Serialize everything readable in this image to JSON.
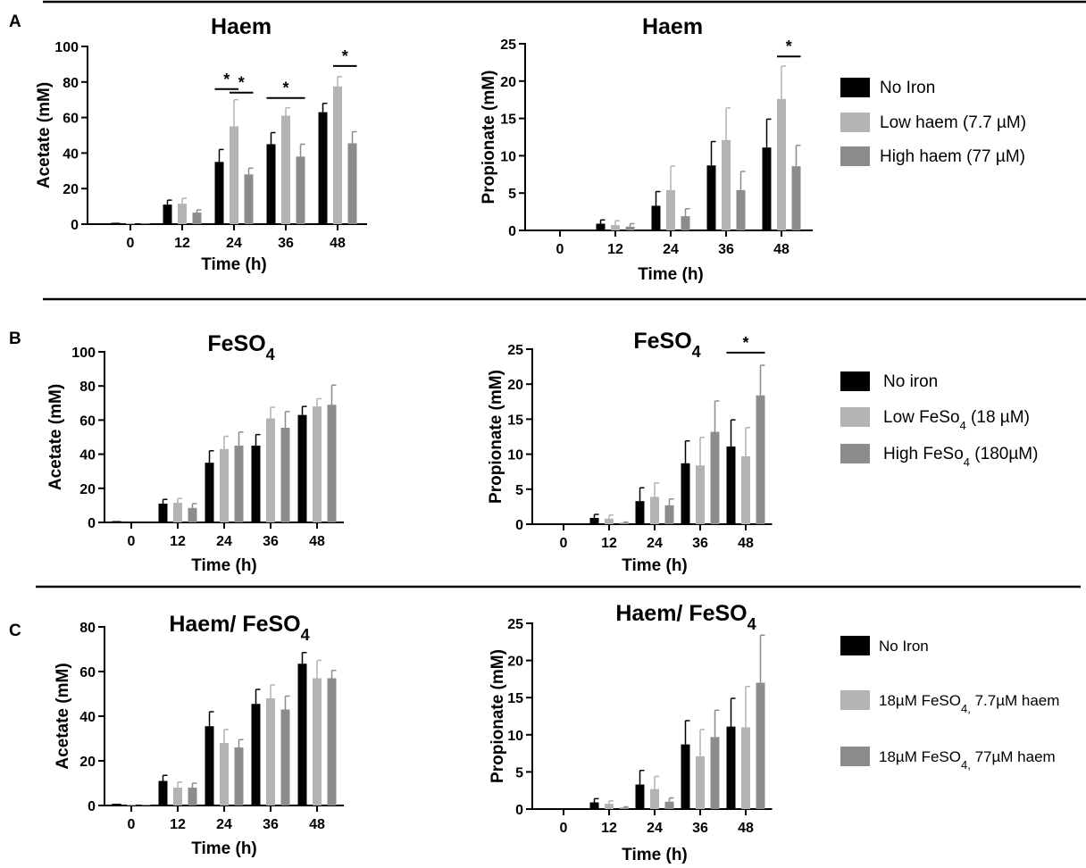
{
  "colors": {
    "no_iron": "#000000",
    "low": "#b3b3b3",
    "high": "#8c8c8c",
    "rule": "#000000"
  },
  "panels": [
    {
      "letter": "A",
      "legend": [
        {
          "parts": [
            {
              "t": "No Iron"
            }
          ]
        },
        {
          "parts": [
            {
              "t": "Low haem (7.7 µM)"
            }
          ]
        },
        {
          "parts": [
            {
              "t": "High haem (77 µM)"
            }
          ]
        }
      ]
    },
    {
      "letter": "B",
      "legend": [
        {
          "parts": [
            {
              "t": "No iron"
            }
          ]
        },
        {
          "parts": [
            {
              "t": "Low FeSo"
            },
            {
              "t": "4",
              "sub": true
            },
            {
              "t": " (18 µM)"
            }
          ]
        },
        {
          "parts": [
            {
              "t": "High FeSo"
            },
            {
              "t": "4",
              "sub": true
            },
            {
              "t": " (180µM)"
            }
          ]
        }
      ]
    },
    {
      "letter": "C",
      "legend": [
        {
          "parts": [
            {
              "t": "No Iron"
            }
          ]
        },
        {
          "parts": [
            {
              "t": "18µM FeSO"
            },
            {
              "t": "4,",
              "sub": true
            },
            {
              "t": " 7.7µM haem"
            }
          ]
        },
        {
          "parts": [
            {
              "t": "18µM FeSO"
            },
            {
              "t": "4,",
              "sub": true
            },
            {
              "t": " 77µM haem"
            }
          ]
        }
      ]
    }
  ],
  "chart_data": [
    {
      "id": "A-acetate",
      "type": "bar",
      "title": "Haem",
      "xlabel": "Time (h)",
      "ylabel": "Acetate (mM)",
      "categories": [
        "0",
        "12",
        "24",
        "36",
        "48"
      ],
      "ylim": [
        0,
        100
      ],
      "yticks": [
        0,
        20,
        40,
        60,
        80,
        100
      ],
      "series": [
        {
          "name": "No Iron",
          "values": [
            0.8,
            11,
            35,
            45,
            63
          ],
          "errors": [
            0,
            2.5,
            7,
            6.5,
            5
          ]
        },
        {
          "name": "Low haem (7.7 µM)",
          "values": [
            0.5,
            11.5,
            55,
            61,
            77.5
          ],
          "errors": [
            0,
            3,
            15,
            4.5,
            5.5
          ]
        },
        {
          "name": "High haem (77 µM)",
          "values": [
            0.4,
            6.5,
            28,
            38,
            45.5
          ],
          "errors": [
            0,
            1.5,
            3.5,
            7,
            6.5
          ]
        }
      ],
      "significance": [
        {
          "label": "*",
          "category": "24",
          "from": "No Iron",
          "to": "Low haem (7.7 µM)",
          "y": 76
        },
        {
          "label": "*",
          "category": "24",
          "from": "Low haem (7.7 µM)",
          "to": "High haem (77 µM)",
          "y": 74
        },
        {
          "label": "*",
          "category": "36",
          "from": "No Iron",
          "to": "High haem (77 µM)",
          "y": 71
        },
        {
          "label": "*",
          "category": "48",
          "from": "Low haem (7.7 µM)",
          "to": "High haem (77 µM)",
          "y": 89
        }
      ]
    },
    {
      "id": "A-propionate",
      "type": "bar",
      "title": "Haem",
      "xlabel": "Time (h)",
      "ylabel": "Propionate (mM)",
      "categories": [
        "0",
        "12",
        "24",
        "36",
        "48"
      ],
      "ylim": [
        0,
        25
      ],
      "yticks": [
        0,
        5,
        10,
        15,
        20,
        25
      ],
      "series": [
        {
          "name": "No Iron",
          "values": [
            0,
            0.9,
            3.3,
            8.7,
            11.1
          ],
          "errors": [
            0,
            0.5,
            1.9,
            3.2,
            3.8
          ]
        },
        {
          "name": "Low haem (7.7 µM)",
          "values": [
            0,
            0.7,
            5.4,
            12.1,
            17.6
          ],
          "errors": [
            0,
            0.6,
            3.2,
            4.3,
            4.4
          ]
        },
        {
          "name": "High haem (77 µM)",
          "values": [
            0,
            0.5,
            1.9,
            5.4,
            8.6
          ],
          "errors": [
            0,
            0.4,
            1.0,
            2.5,
            2.8
          ]
        }
      ],
      "significance": [
        {
          "label": "*",
          "category": "48",
          "from": "Low haem (7.7 µM)",
          "to": "High haem (77 µM)",
          "y": 23.3
        }
      ]
    },
    {
      "id": "B-acetate",
      "type": "bar",
      "title": "FeSO",
      "title_sub": "4",
      "xlabel": "Time (h)",
      "ylabel": "Acetate (mM)",
      "categories": [
        "0",
        "12",
        "24",
        "36",
        "48"
      ],
      "ylim": [
        0,
        100
      ],
      "yticks": [
        0,
        20,
        40,
        60,
        80,
        100
      ],
      "series": [
        {
          "name": "No iron",
          "values": [
            0.8,
            11,
            35,
            45,
            63
          ],
          "errors": [
            0,
            2.5,
            7,
            6.5,
            5
          ]
        },
        {
          "name": "Low FeSo4 (18 µM)",
          "values": [
            0,
            11.5,
            43,
            61,
            68
          ],
          "errors": [
            0,
            2.5,
            7.5,
            6.5,
            4.5
          ]
        },
        {
          "name": "High FeSo4 (180µM)",
          "values": [
            0,
            8.5,
            45,
            55.5,
            69
          ],
          "errors": [
            0,
            2.5,
            8,
            9.5,
            11.5
          ]
        }
      ],
      "significance": []
    },
    {
      "id": "B-propionate",
      "type": "bar",
      "title": "FeSO",
      "title_sub": "4",
      "xlabel": "Time (h)",
      "ylabel": "Propionate (mM)",
      "categories": [
        "0",
        "12",
        "24",
        "36",
        "48"
      ],
      "ylim": [
        0,
        25
      ],
      "yticks": [
        0,
        5,
        10,
        15,
        20,
        25
      ],
      "series": [
        {
          "name": "No iron",
          "values": [
            0,
            0.9,
            3.3,
            8.7,
            11.1
          ],
          "errors": [
            0,
            0.5,
            1.9,
            3.2,
            3.8
          ]
        },
        {
          "name": "Low FeSo4 (18 µM)",
          "values": [
            0,
            0.8,
            3.9,
            8.4,
            9.7
          ],
          "errors": [
            0,
            0.5,
            2.0,
            4.0,
            4.1
          ]
        },
        {
          "name": "High FeSo4 (180µM)",
          "values": [
            0,
            0.2,
            2.7,
            13.2,
            18.4
          ],
          "errors": [
            0,
            0.1,
            0.9,
            4.4,
            4.3
          ]
        }
      ],
      "significance": [
        {
          "label": "*",
          "category": "48",
          "from": "No iron",
          "to": "High FeSo4 (180µM)",
          "y": 24.5
        }
      ]
    },
    {
      "id": "C-acetate",
      "type": "bar",
      "title": "Haem/ FeSO",
      "title_sub": "4",
      "xlabel": "Time (h)",
      "ylabel": "Acetate (mM)",
      "categories": [
        "0",
        "12",
        "24",
        "36",
        "48"
      ],
      "ylim": [
        0,
        80
      ],
      "yticks": [
        0,
        20,
        40,
        60,
        80
      ],
      "series": [
        {
          "name": "No Iron",
          "values": [
            0.8,
            11,
            35.5,
            45.5,
            63.5
          ],
          "errors": [
            0,
            2.5,
            6.5,
            6.5,
            5
          ]
        },
        {
          "name": "18µM FeSO4, 7.7µM haem",
          "values": [
            0.5,
            8,
            28,
            48,
            57
          ],
          "errors": [
            0,
            2.5,
            6,
            6,
            8
          ]
        },
        {
          "name": "18µM FeSO4, 77µM haem",
          "values": [
            0.4,
            8,
            26,
            43,
            57
          ],
          "errors": [
            0,
            2,
            3.5,
            6,
            3.5
          ]
        }
      ],
      "significance": []
    },
    {
      "id": "C-propionate",
      "type": "bar",
      "title": "Haem/ FeSO",
      "title_sub": "4",
      "xlabel": "Time (h)",
      "ylabel": "Propionate (mM)",
      "categories": [
        "0",
        "12",
        "24",
        "36",
        "48"
      ],
      "ylim": [
        0,
        25
      ],
      "yticks": [
        0,
        5,
        10,
        15,
        20,
        25
      ],
      "series": [
        {
          "name": "No Iron",
          "values": [
            0,
            0.9,
            3.3,
            8.7,
            11.1
          ],
          "errors": [
            0,
            0.5,
            1.9,
            3.2,
            3.8
          ]
        },
        {
          "name": "18µM FeSO4, 7.7µM haem",
          "values": [
            0,
            0.7,
            2.7,
            7.1,
            11.0
          ],
          "errors": [
            0,
            0.4,
            1.7,
            3.6,
            5.5
          ]
        },
        {
          "name": "18µM FeSO4, 77µM haem",
          "values": [
            0,
            0.2,
            1.0,
            9.7,
            17.0
          ],
          "errors": [
            0,
            0.1,
            0.5,
            3.6,
            6.4
          ]
        }
      ],
      "significance": []
    }
  ]
}
